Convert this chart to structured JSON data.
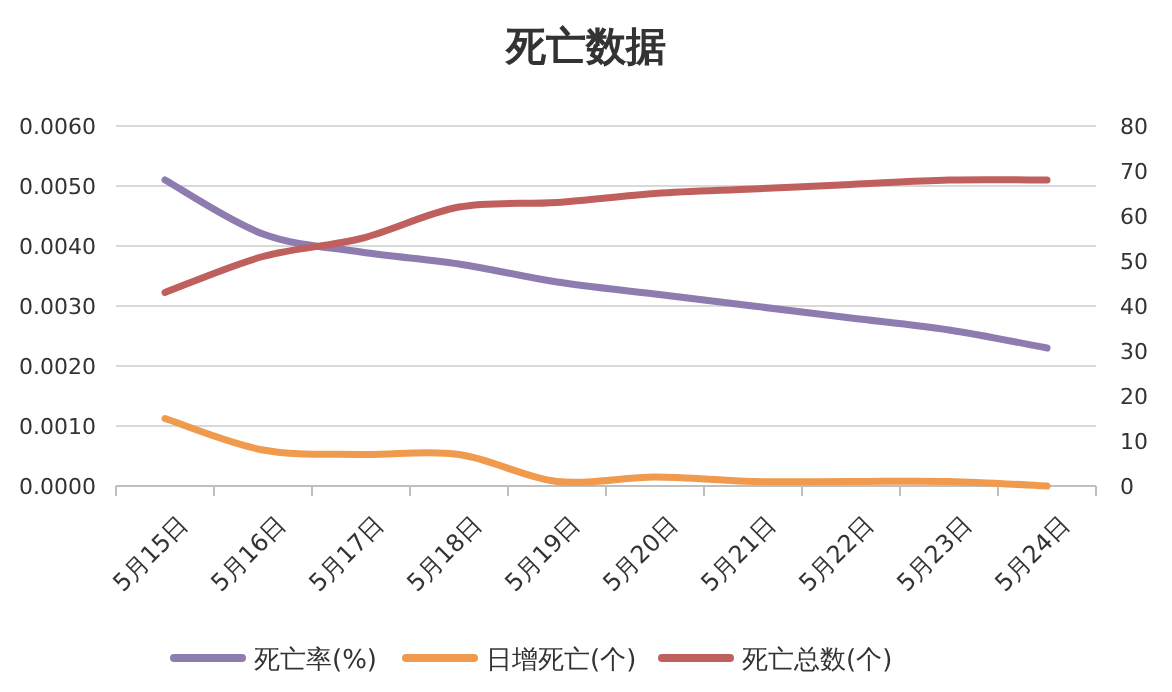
{
  "chart_data": {
    "type": "line",
    "title": "死亡数据",
    "categories": [
      "5月15日",
      "5月16日",
      "5月17日",
      "5月18日",
      "5月19日",
      "5月20日",
      "5月21日",
      "5月22日",
      "5月23日",
      "5月24日"
    ],
    "series": [
      {
        "name": "死亡率(%)",
        "color": "#8e7cb0",
        "values": [
          0.0051,
          0.0042,
          0.0039,
          0.0037,
          0.0034,
          0.0032,
          0.003,
          0.0028,
          0.0026,
          0.0023
        ]
      },
      {
        "name": "日增死亡(个)",
        "color": "#f09a4e",
        "axis": "y2",
        "values": [
          15,
          8,
          7,
          7,
          1,
          2,
          1,
          1,
          1,
          0
        ]
      },
      {
        "name": "死亡总数(个)",
        "color": "#c0605e",
        "axis": "y2",
        "values": [
          43,
          51,
          55,
          62,
          63,
          65,
          66,
          67,
          68,
          68
        ]
      }
    ],
    "ylim": [
      0,
      0.006
    ],
    "yticks": [
      {
        "value": 0,
        "label": "0.0000"
      },
      {
        "value": 0.001,
        "label": "0.0010"
      },
      {
        "value": 0.002,
        "label": "0.0020"
      },
      {
        "value": 0.003,
        "label": "0.0030"
      },
      {
        "value": 0.004,
        "label": "0.0040"
      },
      {
        "value": 0.005,
        "label": "0.0050"
      },
      {
        "value": 0.006,
        "label": "0.0060"
      }
    ],
    "y2lim": [
      0,
      80
    ],
    "y2ticks": [
      0,
      10,
      20,
      30,
      40,
      50,
      60,
      70,
      80
    ],
    "grid": "y",
    "legend": "bottom"
  }
}
